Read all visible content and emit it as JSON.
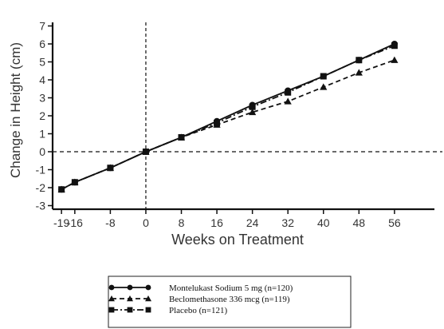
{
  "chart_data": {
    "type": "line",
    "xlabel": "Weeks on Treatment",
    "ylabel": "Change in Height (cm)",
    "x_ticks": [
      -19,
      -16,
      -8,
      0,
      8,
      16,
      24,
      32,
      40,
      48,
      56
    ],
    "y_ticks": [
      -3,
      -2,
      -1,
      0,
      1,
      2,
      3,
      4,
      5,
      6,
      7
    ],
    "xlim": [
      -21,
      65
    ],
    "ylim": [
      -3.2,
      7.2
    ],
    "reference_lines": {
      "x": 0,
      "y": 0,
      "style": "dashed"
    },
    "legend_position": "bottom-center",
    "series": [
      {
        "name": "Montelukast Sodium 5 mg (n=120)",
        "marker": "circle",
        "dash": "solid",
        "x": [
          -19,
          -16,
          -8,
          0,
          8,
          16,
          24,
          32,
          40,
          48,
          56
        ],
        "values": [
          -2.1,
          -1.7,
          -0.9,
          0.0,
          0.8,
          1.7,
          2.6,
          3.4,
          4.2,
          5.1,
          6.0
        ]
      },
      {
        "name": "Beclomethasone 336 mcg (n=119)",
        "marker": "triangle",
        "dash": "dashed",
        "x": [
          -19,
          -16,
          -8,
          0,
          8,
          16,
          24,
          32,
          40,
          48,
          56
        ],
        "values": [
          -2.1,
          -1.7,
          -0.9,
          0.0,
          0.8,
          1.5,
          2.2,
          2.8,
          3.6,
          4.4,
          5.1
        ]
      },
      {
        "name": "Placebo (n=121)",
        "marker": "square",
        "dash": "dashdot",
        "x": [
          -19,
          -16,
          -8,
          0,
          8,
          16,
          24,
          32,
          40,
          48,
          56
        ],
        "values": [
          -2.1,
          -1.7,
          -0.9,
          0.0,
          0.8,
          1.6,
          2.5,
          3.3,
          4.2,
          5.1,
          5.9
        ]
      }
    ]
  }
}
